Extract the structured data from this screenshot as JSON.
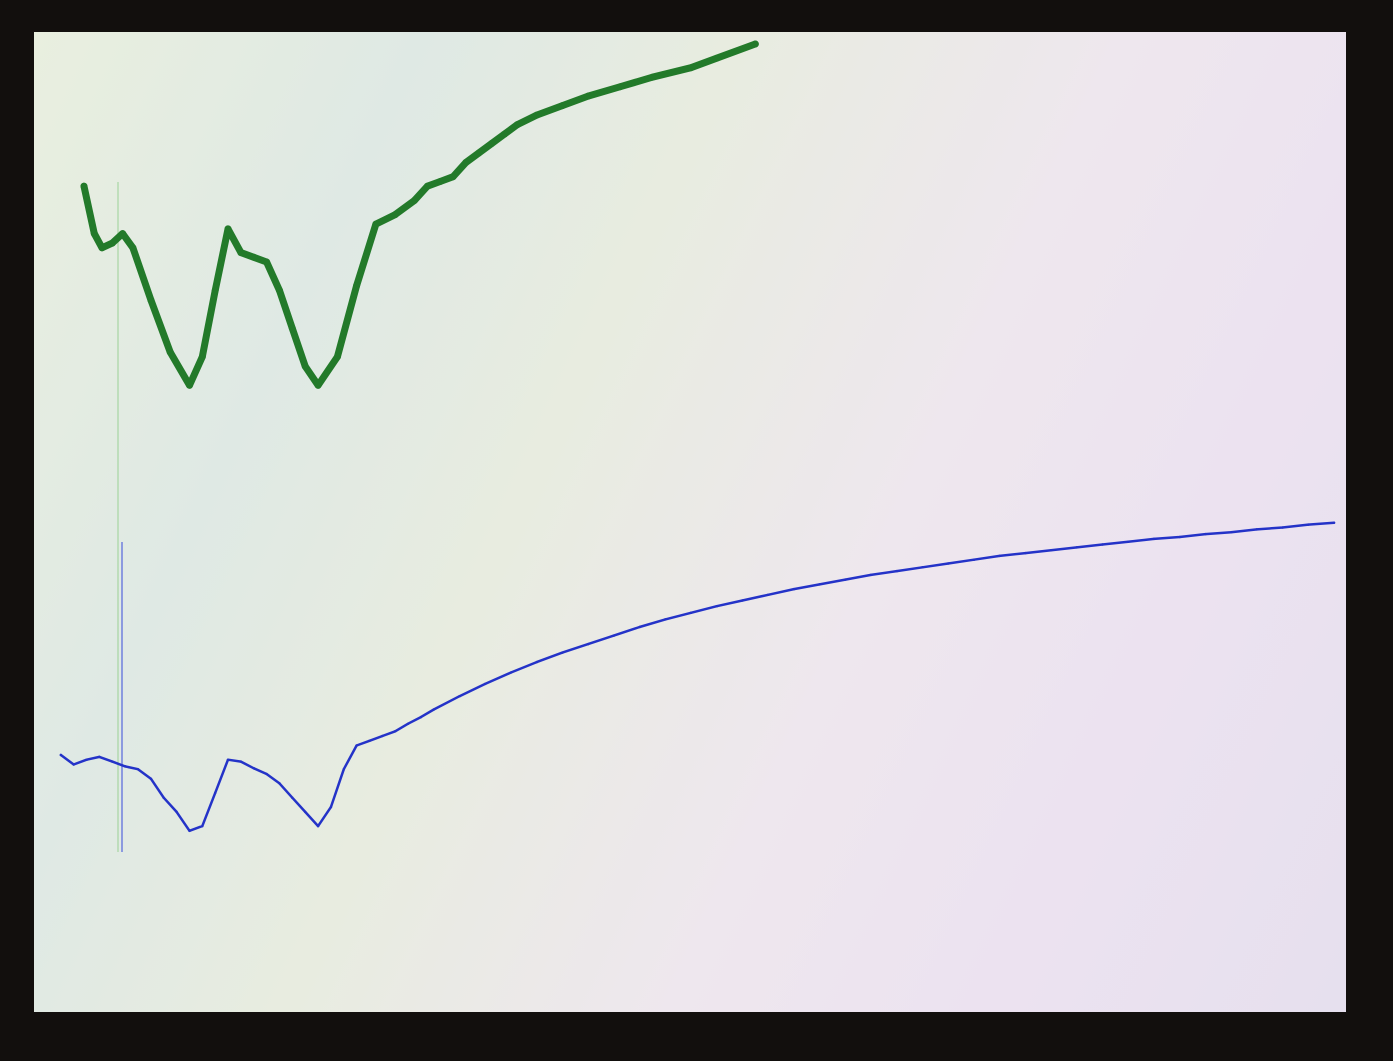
{
  "chart_data": {
    "type": "line",
    "title": "",
    "xlabel": "",
    "ylabel": "",
    "xlim": [
      0,
      100
    ],
    "ylim": [
      0,
      100
    ],
    "grid": false,
    "series": [
      {
        "color": "#237a2a",
        "x": [
          2.8,
          3.6,
          4.2,
          5.0,
          5.8,
          6.6,
          8.0,
          9.5,
          11.0,
          12.0,
          13.0,
          14.0,
          15.0,
          16.0,
          17.0,
          18.0,
          19.0,
          20.0,
          21.0,
          22.5,
          24.0,
          25.5,
          27.0,
          28.5,
          29.5,
          30.5,
          31.5,
          32.5,
          33.5,
          34.5,
          35.5,
          36.5,
          38.0,
          40.0,
          42.0,
          44.5,
          47.0,
          50.0,
          52.0,
          55.0
        ],
        "values": [
          85.0,
          80.0,
          78.5,
          79.0,
          80.0,
          78.5,
          73.0,
          67.5,
          64.0,
          67.0,
          74.0,
          80.5,
          78.0,
          77.5,
          77.0,
          74.0,
          70.0,
          66.0,
          64.0,
          67.0,
          74.5,
          81.0,
          82.0,
          83.5,
          85.0,
          85.5,
          86.0,
          87.5,
          88.5,
          89.5,
          90.5,
          91.5,
          92.5,
          93.5,
          94.5,
          95.5,
          96.5,
          97.5,
          98.5,
          100.0
        ]
      },
      {
        "color": "#2433c8",
        "x": [
          1.0,
          2.0,
          3.0,
          4.0,
          5.0,
          6.0,
          7.0,
          8.0,
          9.0,
          10.0,
          11.0,
          12.0,
          13.0,
          14.0,
          15.0,
          16.0,
          17.0,
          18.0,
          19.0,
          20.0,
          21.0,
          22.0,
          23.0,
          24.0,
          25.0,
          26.0,
          27.0,
          28.0,
          29.0,
          30.0,
          32.0,
          34.0,
          36.0,
          38.0,
          40.0,
          42.0,
          44.0,
          46.0,
          48.0,
          50.0,
          52.0,
          54.0,
          56.0,
          58.0,
          60.0,
          62.0,
          64.0,
          66.0,
          68.0,
          70.0,
          72.0,
          74.0,
          76.0,
          78.0,
          80.0,
          82.0,
          84.0,
          86.0,
          88.0,
          90.0,
          92.0,
          94.0,
          96.0,
          98.0,
          100.0
        ],
        "values": [
          25.0,
          24.0,
          24.5,
          24.8,
          24.3,
          23.8,
          23.5,
          22.5,
          20.5,
          19.0,
          17.0,
          17.5,
          21.0,
          24.5,
          24.3,
          23.6,
          23.0,
          22.0,
          20.5,
          19.0,
          17.5,
          19.5,
          23.5,
          26.0,
          26.5,
          27.0,
          27.5,
          28.3,
          29.0,
          29.8,
          31.2,
          32.5,
          33.7,
          34.8,
          35.8,
          36.7,
          37.6,
          38.5,
          39.3,
          40.0,
          40.7,
          41.3,
          41.9,
          42.5,
          43.0,
          43.5,
          44.0,
          44.4,
          44.8,
          45.2,
          45.6,
          46.0,
          46.3,
          46.6,
          46.9,
          47.2,
          47.5,
          47.8,
          48.0,
          48.3,
          48.5,
          48.8,
          49.0,
          49.3,
          49.5
        ]
      }
    ]
  }
}
